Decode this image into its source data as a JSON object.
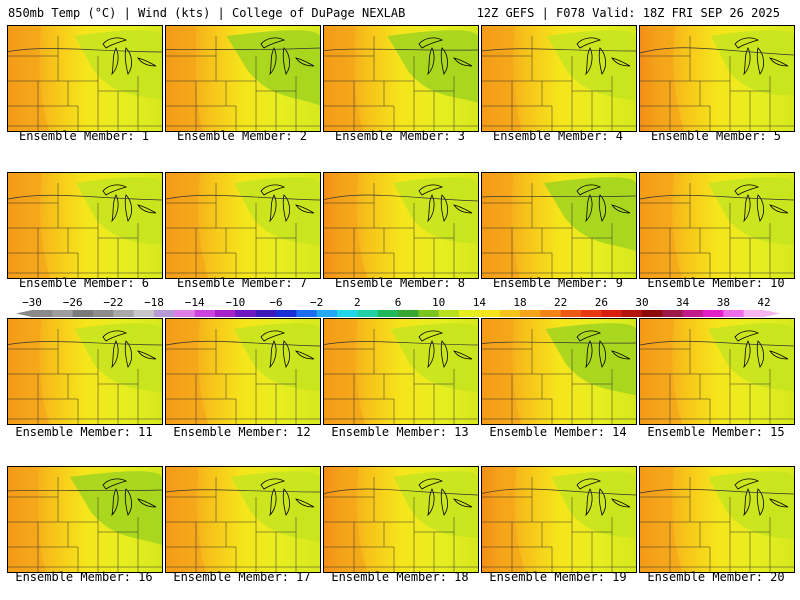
{
  "header": {
    "left_title": "850mb Temp (°C) | Wind (kts) | College of DuPage NEXLAB",
    "right_title": "12Z GEFS | F078 Valid: 18Z FRI SEP 26 2025"
  },
  "members": [
    {
      "caption": "Ensemble Member: 1",
      "warmth": 0.55
    },
    {
      "caption": "Ensemble Member: 2",
      "warmth": 0.35
    },
    {
      "caption": "Ensemble Member: 3",
      "warmth": 0.45
    },
    {
      "caption": "Ensemble Member: 4",
      "warmth": 0.5
    },
    {
      "caption": "Ensemble Member: 5",
      "warmth": 0.7
    },
    {
      "caption": "Ensemble Member: 6",
      "warmth": 0.6
    },
    {
      "caption": "Ensemble Member: 7",
      "warmth": 0.6
    },
    {
      "caption": "Ensemble Member: 8",
      "warmth": 0.65
    },
    {
      "caption": "Ensemble Member: 9",
      "warmth": 0.4
    },
    {
      "caption": "Ensemble Member: 10",
      "warmth": 0.6
    },
    {
      "caption": "Ensemble Member: 11",
      "warmth": 0.55
    },
    {
      "caption": "Ensemble Member: 12",
      "warmth": 0.6
    },
    {
      "caption": "Ensemble Member: 13",
      "warmth": 0.55
    },
    {
      "caption": "Ensemble Member: 14",
      "warmth": 0.45
    },
    {
      "caption": "Ensemble Member: 15",
      "warmth": 0.6
    },
    {
      "caption": "Ensemble Member: 16",
      "warmth": 0.4
    },
    {
      "caption": "Ensemble Member: 17",
      "warmth": 0.5
    },
    {
      "caption": "Ensemble Member: 18",
      "warmth": 0.65
    },
    {
      "caption": "Ensemble Member: 19",
      "warmth": 0.65
    },
    {
      "caption": "Ensemble Member: 20",
      "warmth": 0.6
    }
  ],
  "colorbar": {
    "labels": [
      "−30",
      "−26",
      "−22",
      "−18",
      "−14",
      "−10",
      "−6",
      "−2",
      "2",
      "6",
      "10",
      "14",
      "18",
      "22",
      "26",
      "30",
      "34",
      "38",
      "42"
    ],
    "colors": [
      "#8a8a8a",
      "#9e9e9e",
      "#7a7a7a",
      "#8c8c8c",
      "#a8a8a8",
      "#c7c7c7",
      "#b59ad6",
      "#e07ce6",
      "#cc44dd",
      "#a522c9",
      "#6d18c2",
      "#3a1ab8",
      "#1c2fd6",
      "#1c6ef0",
      "#22a8f7",
      "#22d6e8",
      "#1fd1a5",
      "#20b85a",
      "#3aa632",
      "#7ac41f",
      "#b9e01c",
      "#e7ee1f",
      "#f6e51b",
      "#f7c51a",
      "#f5a419",
      "#f28316",
      "#ee5a14",
      "#e83a12",
      "#d91f10",
      "#b5130e",
      "#8c0a0a",
      "#9c1a4a",
      "#c21a8a",
      "#e21fc8",
      "#f06ce8",
      "#f7b6f0"
    ]
  }
}
